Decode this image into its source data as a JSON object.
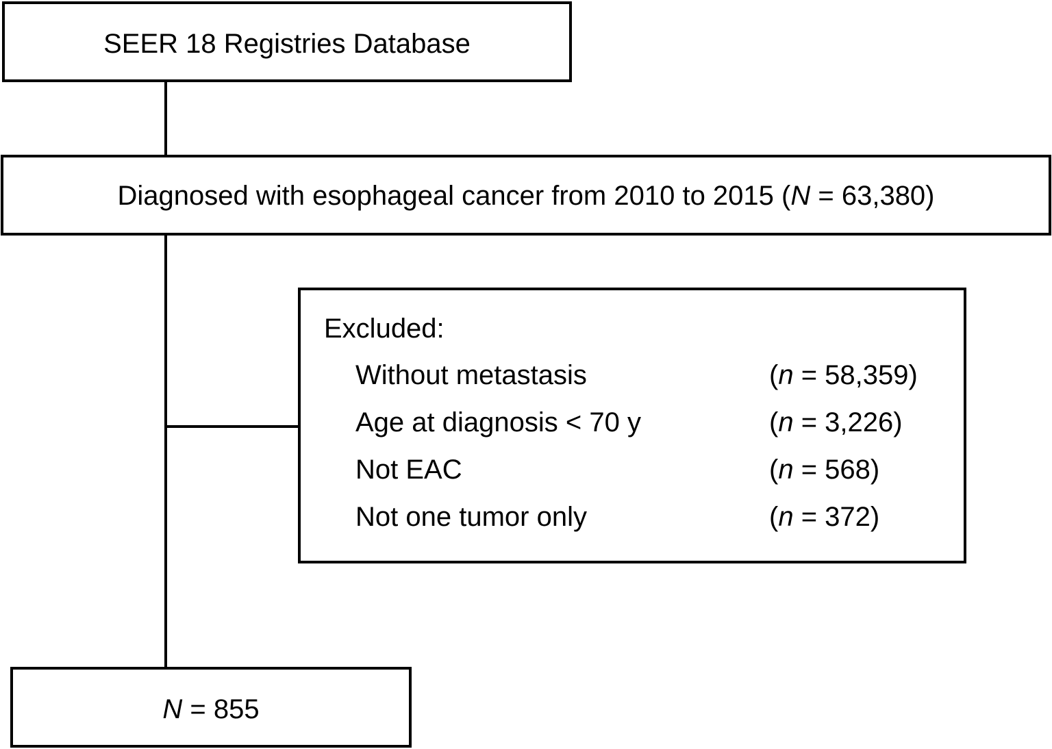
{
  "boxes": {
    "source": {
      "label": "SEER 18 Registries Database"
    },
    "diagnosed": {
      "label_prefix": "Diagnosed with esophageal cancer from 2010 to 2015 (",
      "n_symbol": "N",
      "label_suffix": " = 63,380)"
    },
    "excluded": {
      "header": "Excluded:",
      "items": [
        {
          "label": "Without metastasis",
          "open": "(",
          "n_symbol": "n",
          "count": " = 58,359)"
        },
        {
          "label": "Age at diagnosis < 70 y",
          "open": "(",
          "n_symbol": "n",
          "count": " = 3,226)"
        },
        {
          "label": "Not EAC",
          "open": "(",
          "n_symbol": "n",
          "count": " = 568)"
        },
        {
          "label": "Not one tumor only",
          "open": "(",
          "n_symbol": "n",
          "count": " = 372)"
        }
      ]
    },
    "final": {
      "n_symbol": "N",
      "count": " = 855"
    }
  }
}
